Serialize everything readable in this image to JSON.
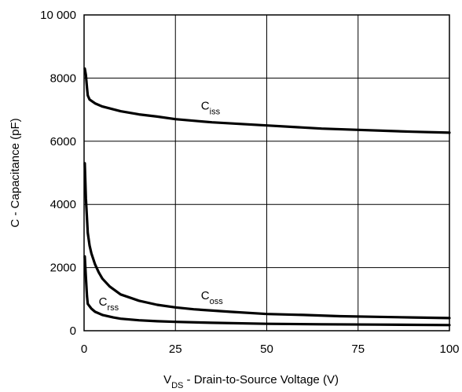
{
  "chart_data": {
    "type": "line",
    "xlabel": {
      "base": "V",
      "sub": "DS",
      "rest": " - Drain-to-Source Voltage (V)"
    },
    "ylabel": "C - Capacitance (pF)",
    "xlim": [
      0,
      100
    ],
    "ylim": [
      0,
      10000
    ],
    "xticks": [
      0,
      25,
      50,
      75,
      100
    ],
    "xtick_labels": [
      "0",
      "25",
      "50",
      "75",
      "100"
    ],
    "yticks": [
      0,
      2000,
      4000,
      6000,
      8000,
      10000
    ],
    "ytick_labels": [
      "0",
      "2000",
      "4000",
      "6000",
      "8000",
      "10 000"
    ],
    "grid": true,
    "series": [
      {
        "name": {
          "base": "C",
          "sub": "iss"
        },
        "label_at": [
          32,
          7000
        ],
        "points": [
          [
            0.2,
            8300
          ],
          [
            0.5,
            8100
          ],
          [
            0.8,
            7700
          ],
          [
            1,
            7450
          ],
          [
            1.5,
            7320
          ],
          [
            3,
            7200
          ],
          [
            5,
            7100
          ],
          [
            10,
            6950
          ],
          [
            15,
            6850
          ],
          [
            20,
            6780
          ],
          [
            25,
            6700
          ],
          [
            35,
            6600
          ],
          [
            50,
            6500
          ],
          [
            65,
            6400
          ],
          [
            75,
            6360
          ],
          [
            90,
            6300
          ],
          [
            100,
            6270
          ]
        ]
      },
      {
        "name": {
          "base": "C",
          "sub": "oss"
        },
        "label_at": [
          32,
          1000
        ],
        "points": [
          [
            0.2,
            5300
          ],
          [
            0.5,
            4200
          ],
          [
            1,
            3100
          ],
          [
            1.5,
            2700
          ],
          [
            2,
            2450
          ],
          [
            3,
            2100
          ],
          [
            4,
            1850
          ],
          [
            5,
            1650
          ],
          [
            7,
            1400
          ],
          [
            10,
            1150
          ],
          [
            15,
            950
          ],
          [
            20,
            820
          ],
          [
            25,
            740
          ],
          [
            30,
            680
          ],
          [
            40,
            600
          ],
          [
            50,
            530
          ],
          [
            60,
            500
          ],
          [
            70,
            460
          ],
          [
            80,
            440
          ],
          [
            90,
            420
          ],
          [
            100,
            400
          ]
        ]
      },
      {
        "name": {
          "base": "C",
          "sub": "rss"
        },
        "label_at": [
          4,
          800
        ],
        "points": [
          [
            0.2,
            2350
          ],
          [
            0.5,
            1700
          ],
          [
            0.8,
            1100
          ],
          [
            1,
            850
          ],
          [
            2,
            700
          ],
          [
            3,
            600
          ],
          [
            5,
            500
          ],
          [
            8,
            420
          ],
          [
            10,
            380
          ],
          [
            15,
            330
          ],
          [
            20,
            300
          ],
          [
            25,
            280
          ],
          [
            35,
            250
          ],
          [
            50,
            220
          ],
          [
            65,
            205
          ],
          [
            80,
            195
          ],
          [
            100,
            180
          ]
        ]
      }
    ]
  }
}
